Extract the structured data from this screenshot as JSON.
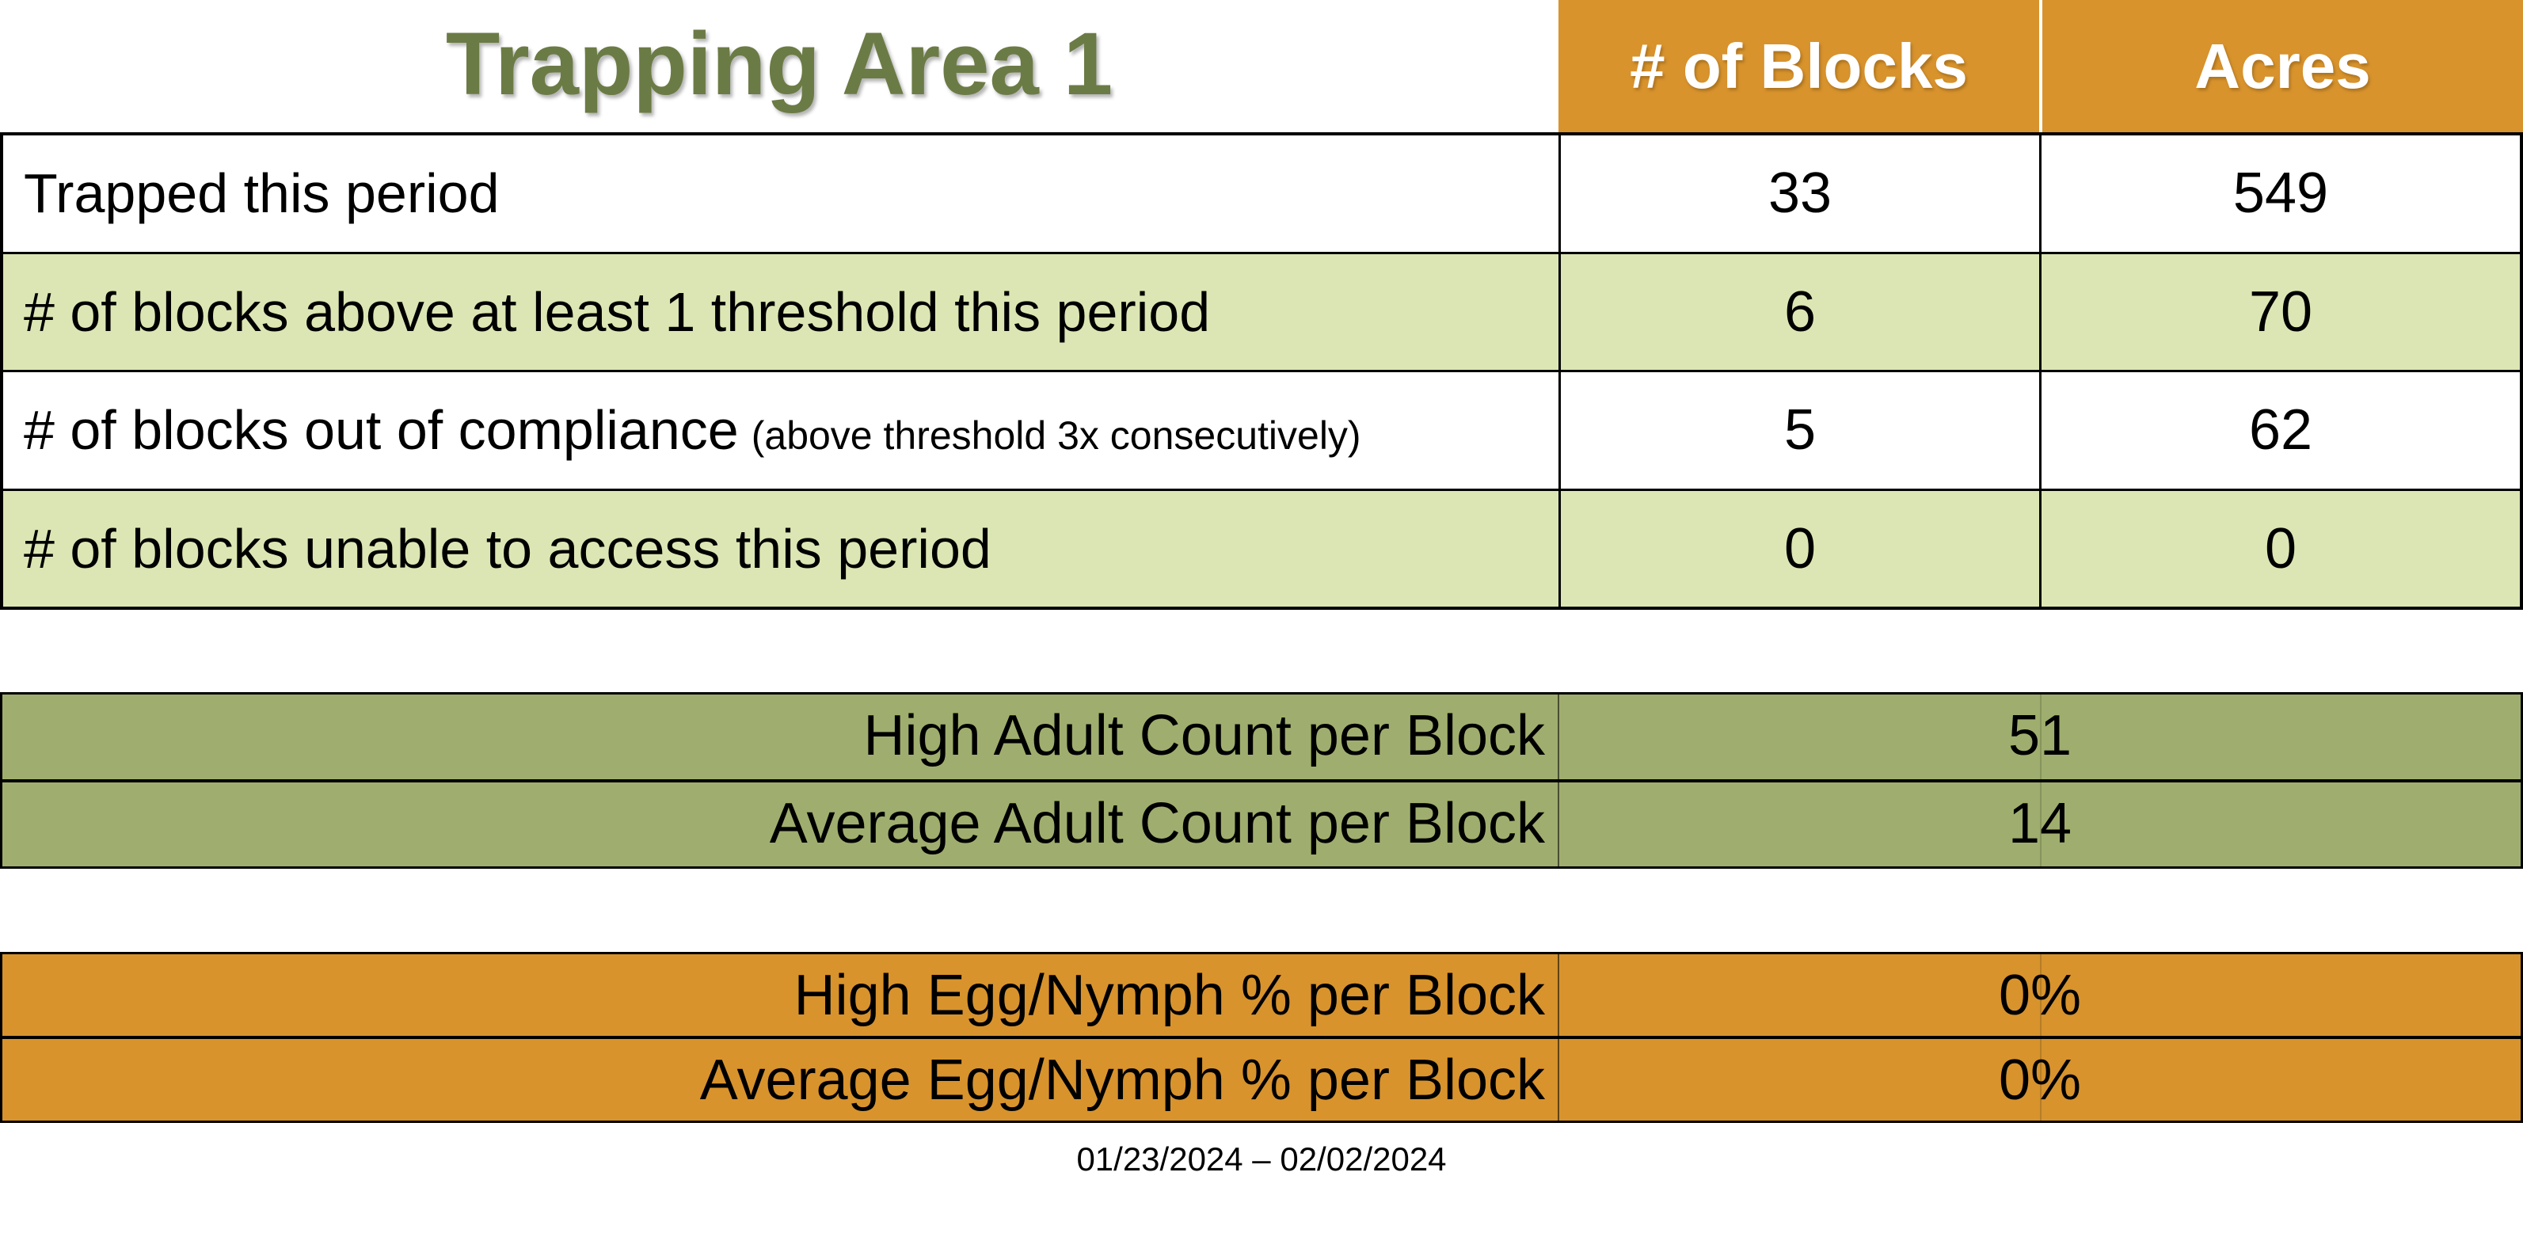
{
  "page": {
    "title": "Trapping Area 1",
    "date_range": "01/23/2024 – 02/02/2024"
  },
  "header": {
    "blocks": "# of Blocks",
    "acres": "Acres"
  },
  "summary_table": {
    "rows": [
      {
        "label": "Trapped this period",
        "note": "",
        "blocks": "33",
        "acres": "549"
      },
      {
        "label": "# of blocks above at least 1 threshold this period",
        "note": "",
        "blocks": "6",
        "acres": "70"
      },
      {
        "label": "# of blocks out of compliance",
        "note": "(above threshold 3x consecutively)",
        "blocks": "5",
        "acres": "62"
      },
      {
        "label": "# of blocks unable to access this period",
        "note": "",
        "blocks": "0",
        "acres": "0"
      }
    ]
  },
  "adult_table": {
    "rows": [
      {
        "label": "High Adult Count per Block",
        "value": "51"
      },
      {
        "label": "Average Adult Count per Block",
        "value": "14"
      }
    ]
  },
  "egg_table": {
    "rows": [
      {
        "label": "High Egg/Nymph % per Block",
        "value": "0%"
      },
      {
        "label": "Average Egg/Nymph % per Block",
        "value": "0%"
      }
    ]
  },
  "colors": {
    "orange": "#D8932D",
    "light_green": "#DCE6B4",
    "sage_green": "#9FAE6E",
    "title_olive": "#6B7B45",
    "header_text": "#FFFFFF",
    "border_black": "#000000"
  }
}
